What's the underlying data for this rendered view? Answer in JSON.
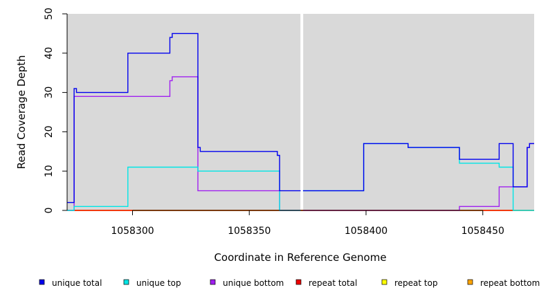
{
  "chart_data": {
    "type": "line",
    "xlabel": "Coordinate in Reference Genome",
    "ylabel": "Read Coverage Depth",
    "xlim": [
      1058272,
      1058472
    ],
    "ylim": [
      0,
      50
    ],
    "x_ticks": [
      1058300,
      1058350,
      1058400,
      1058450
    ],
    "y_ticks": [
      0,
      10,
      20,
      30,
      40,
      50
    ],
    "background": "#d9d9d9",
    "grid": false,
    "gap": [
      1058372,
      1058373
    ],
    "legend_position": "bottom",
    "series": [
      {
        "name": "unique total",
        "color": "#0000ee",
        "steps": [
          [
            1058272,
            2
          ],
          [
            1058275,
            31
          ],
          [
            1058276,
            30
          ],
          [
            1058298,
            40
          ],
          [
            1058316,
            44
          ],
          [
            1058317,
            45
          ],
          [
            1058328,
            16
          ],
          [
            1058329,
            15
          ],
          [
            1058362,
            14
          ],
          [
            1058363,
            5
          ],
          [
            1058372,
            null
          ],
          [
            1058373,
            5
          ],
          [
            1058399,
            17
          ],
          [
            1058418,
            16
          ],
          [
            1058440,
            13
          ],
          [
            1058457,
            17
          ],
          [
            1058463,
            6
          ],
          [
            1058469,
            16
          ],
          [
            1058470,
            17
          ],
          [
            1058472,
            17
          ]
        ]
      },
      {
        "name": "unique top",
        "color": "#00e5e5",
        "steps": [
          [
            1058272,
            0
          ],
          [
            1058275,
            1
          ],
          [
            1058298,
            11
          ],
          [
            1058328,
            10
          ],
          [
            1058363,
            0
          ],
          [
            1058372,
            null
          ],
          [
            1058373,
            5
          ],
          [
            1058399,
            17
          ],
          [
            1058418,
            16
          ],
          [
            1058440,
            12
          ],
          [
            1058457,
            11
          ],
          [
            1058463,
            0
          ],
          [
            1058472,
            0
          ]
        ]
      },
      {
        "name": "unique bottom",
        "color": "#a020f0",
        "steps": [
          [
            1058272,
            0
          ],
          [
            1058275,
            29
          ],
          [
            1058316,
            33
          ],
          [
            1058317,
            34
          ],
          [
            1058328,
            5
          ],
          [
            1058363,
            0
          ],
          [
            1058372,
            null
          ],
          [
            1058373,
            0
          ],
          [
            1058440,
            1
          ],
          [
            1058457,
            6
          ],
          [
            1058463,
            6
          ],
          [
            1058469,
            16
          ],
          [
            1058470,
            17
          ],
          [
            1058472,
            17
          ]
        ]
      },
      {
        "name": "repeat total",
        "color": "#ee0000",
        "steps": [
          [
            1058272,
            0
          ],
          [
            1058472,
            0
          ]
        ]
      },
      {
        "name": "repeat top",
        "color": "#ffff00",
        "steps": [
          [
            1058272,
            0
          ],
          [
            1058472,
            0
          ]
        ]
      },
      {
        "name": "repeat bottom",
        "color": "#ffa500",
        "steps": [
          [
            1058272,
            0
          ],
          [
            1058472,
            0
          ]
        ]
      }
    ]
  }
}
